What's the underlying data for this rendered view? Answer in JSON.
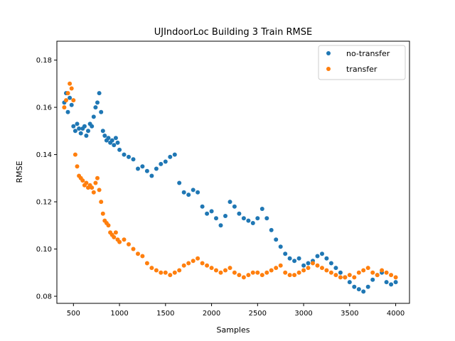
{
  "chart_data": {
    "type": "scatter",
    "title": "UJIndoorLoc Building 3 Train RMSE",
    "xlabel": "Samples",
    "ylabel": "RMSE",
    "xlim": [
      320,
      4150
    ],
    "ylim": [
      0.077,
      0.188
    ],
    "xticks": [
      500,
      1000,
      1500,
      2000,
      2500,
      3000,
      3500,
      4000
    ],
    "yticks": [
      0.08,
      0.1,
      0.12,
      0.14,
      0.16,
      0.18
    ],
    "grid": false,
    "legend_position": "upper right",
    "series": [
      {
        "name": "no-transfer",
        "color": "#1f77b4",
        "x": [
          400,
          420,
          440,
          460,
          480,
          500,
          520,
          540,
          560,
          580,
          600,
          620,
          640,
          660,
          680,
          700,
          720,
          740,
          760,
          780,
          800,
          820,
          840,
          860,
          880,
          900,
          920,
          940,
          960,
          980,
          1000,
          1050,
          1100,
          1150,
          1200,
          1250,
          1300,
          1350,
          1400,
          1450,
          1500,
          1550,
          1600,
          1650,
          1700,
          1750,
          1800,
          1850,
          1900,
          1950,
          2000,
          2050,
          2100,
          2150,
          2200,
          2250,
          2300,
          2350,
          2400,
          2450,
          2500,
          2550,
          2600,
          2650,
          2700,
          2750,
          2800,
          2850,
          2900,
          2950,
          3000,
          3050,
          3100,
          3150,
          3200,
          3250,
          3300,
          3350,
          3400,
          3450,
          3500,
          3550,
          3600,
          3650,
          3700,
          3750,
          3800,
          3850,
          3900,
          3950,
          4000
        ],
        "y": [
          0.162,
          0.166,
          0.158,
          0.164,
          0.161,
          0.152,
          0.15,
          0.153,
          0.151,
          0.149,
          0.151,
          0.152,
          0.148,
          0.15,
          0.153,
          0.152,
          0.156,
          0.16,
          0.162,
          0.166,
          0.158,
          0.15,
          0.148,
          0.146,
          0.147,
          0.145,
          0.146,
          0.144,
          0.147,
          0.145,
          0.142,
          0.14,
          0.139,
          0.138,
          0.134,
          0.135,
          0.133,
          0.131,
          0.134,
          0.136,
          0.137,
          0.139,
          0.14,
          0.128,
          0.124,
          0.123,
          0.125,
          0.124,
          0.118,
          0.115,
          0.116,
          0.113,
          0.11,
          0.114,
          0.12,
          0.118,
          0.115,
          0.113,
          0.112,
          0.111,
          0.113,
          0.117,
          0.113,
          0.108,
          0.104,
          0.101,
          0.098,
          0.096,
          0.095,
          0.096,
          0.093,
          0.094,
          0.095,
          0.097,
          0.098,
          0.096,
          0.094,
          0.092,
          0.09,
          0.088,
          0.086,
          0.084,
          0.083,
          0.082,
          0.084,
          0.087,
          0.089,
          0.09,
          0.086,
          0.085,
          0.086
        ]
      },
      {
        "name": "transfer",
        "color": "#ff7f0e",
        "x": [
          400,
          420,
          440,
          460,
          480,
          500,
          520,
          540,
          560,
          580,
          600,
          620,
          640,
          660,
          680,
          700,
          720,
          740,
          760,
          780,
          800,
          820,
          840,
          860,
          880,
          900,
          920,
          940,
          960,
          980,
          1000,
          1050,
          1100,
          1150,
          1200,
          1250,
          1300,
          1350,
          1400,
          1450,
          1500,
          1550,
          1600,
          1650,
          1700,
          1750,
          1800,
          1850,
          1900,
          1950,
          2000,
          2050,
          2100,
          2150,
          2200,
          2250,
          2300,
          2350,
          2400,
          2450,
          2500,
          2550,
          2600,
          2650,
          2700,
          2750,
          2800,
          2850,
          2900,
          2950,
          3000,
          3050,
          3100,
          3150,
          3200,
          3250,
          3300,
          3350,
          3400,
          3450,
          3500,
          3550,
          3600,
          3650,
          3700,
          3750,
          3800,
          3850,
          3900,
          3950,
          4000
        ],
        "y": [
          0.16,
          0.163,
          0.166,
          0.17,
          0.168,
          0.163,
          0.14,
          0.135,
          0.131,
          0.13,
          0.129,
          0.127,
          0.128,
          0.126,
          0.127,
          0.126,
          0.124,
          0.128,
          0.13,
          0.125,
          0.12,
          0.115,
          0.112,
          0.111,
          0.11,
          0.107,
          0.106,
          0.105,
          0.107,
          0.104,
          0.103,
          0.104,
          0.102,
          0.1,
          0.098,
          0.097,
          0.094,
          0.092,
          0.091,
          0.09,
          0.09,
          0.089,
          0.09,
          0.091,
          0.093,
          0.094,
          0.095,
          0.096,
          0.094,
          0.093,
          0.092,
          0.091,
          0.09,
          0.091,
          0.092,
          0.09,
          0.089,
          0.088,
          0.089,
          0.09,
          0.09,
          0.089,
          0.09,
          0.091,
          0.092,
          0.093,
          0.09,
          0.089,
          0.089,
          0.09,
          0.091,
          0.092,
          0.094,
          0.093,
          0.092,
          0.091,
          0.09,
          0.089,
          0.088,
          0.088,
          0.089,
          0.088,
          0.09,
          0.091,
          0.092,
          0.09,
          0.089,
          0.091,
          0.09,
          0.089,
          0.088
        ]
      }
    ]
  }
}
